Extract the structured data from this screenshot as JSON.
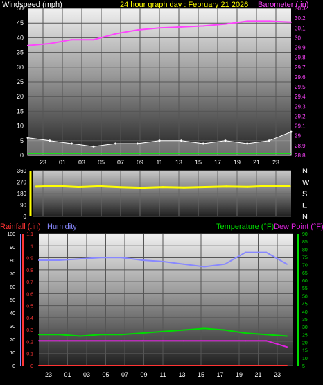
{
  "header": {
    "left_label": "Windspeed (mph)",
    "center_label": "24 hour graph day : February 21 2026",
    "right_label": "Barometer (.in)"
  },
  "colors": {
    "background": "#000000",
    "wind": "#ffffff",
    "wind_gust_avg": "#00ff00",
    "barometer": "#ff44ff",
    "direction": "#ffff00",
    "direction_axis": "#ffff00",
    "rain": "#ff3333",
    "humidity": "#8888ff",
    "temperature": "#00dd00",
    "dew_point": "#dd22dd",
    "header_center": "#ffff00",
    "tick": "#ffffff"
  },
  "x_ticks": [
    "23",
    "01",
    "03",
    "05",
    "07",
    "09",
    "11",
    "13",
    "15",
    "17",
    "19",
    "21",
    "23"
  ],
  "chart_data": [
    {
      "type": "line",
      "panel": "wind_barometer",
      "title": "24 hour graph day : February 21 2026",
      "ylabel_left": "Windspeed (mph)",
      "ylabel_right": "Barometer (.in)",
      "ylim_left": [
        0,
        50
      ],
      "yticks_left": [
        "0",
        "5",
        "10",
        "15",
        "20",
        "25",
        "30",
        "35",
        "40",
        "45",
        "50"
      ],
      "ylim_right": [
        28.8,
        30.3
      ],
      "yticks_right": [
        "28.8",
        "28.9",
        "29",
        "29.1",
        "29.2",
        "29.3",
        "29.4",
        "29.5",
        "29.6",
        "29.7",
        "29.8",
        "29.9",
        "30",
        "30.1",
        "30.2",
        "30.3"
      ],
      "x": [
        "23",
        "01",
        "03",
        "05",
        "07",
        "09",
        "11",
        "13",
        "15",
        "17",
        "19",
        "21",
        "23"
      ],
      "series": [
        {
          "name": "Barometer",
          "axis": "right",
          "color": "#ff44ff",
          "values": [
            29.92,
            29.94,
            29.98,
            29.98,
            30.04,
            30.08,
            30.1,
            30.11,
            30.12,
            30.14,
            30.17,
            30.17,
            30.16
          ]
        },
        {
          "name": "Windspeed",
          "axis": "left",
          "color": "#ffffff",
          "values": [
            6,
            5,
            4,
            3,
            4,
            4,
            5,
            5,
            4,
            5,
            4,
            5,
            8
          ]
        }
      ],
      "grid": true
    },
    {
      "type": "scatter",
      "panel": "wind_direction",
      "ylim": [
        0,
        360
      ],
      "yticks": [
        "0",
        "90",
        "180",
        "270",
        "360"
      ],
      "direction_labels": [
        "N",
        "W",
        "S",
        "E",
        "N"
      ],
      "x": [
        "23",
        "01",
        "03",
        "05",
        "07",
        "09",
        "11",
        "13",
        "15",
        "17",
        "19",
        "21",
        "23"
      ],
      "series": [
        {
          "name": "Wind Direction",
          "color": "#ffff00",
          "values": [
            235,
            240,
            232,
            238,
            230,
            226,
            231,
            228,
            232,
            236,
            233,
            240,
            238
          ]
        }
      ],
      "grid": true
    },
    {
      "type": "line",
      "panel": "rain_humidity_temp",
      "legend_left": [
        "Rainfall (.in)",
        "Humidity"
      ],
      "legend_right": [
        "Temperature (°F)",
        "Dew Point (°F)"
      ],
      "humidity_ylim": [
        0,
        100
      ],
      "humidity_yticks": [
        "0",
        "10",
        "20",
        "30",
        "40",
        "50",
        "60",
        "70",
        "80",
        "90",
        "100"
      ],
      "rain_ylim": [
        0,
        1.1
      ],
      "rain_yticks": [
        "0",
        "0.1",
        "0.2",
        "0.3",
        "0.4",
        "0.5",
        "0.6",
        "0.7",
        "0.8",
        "0.9",
        "1",
        "1.1"
      ],
      "temp_ylim": [
        5,
        90
      ],
      "temp_yticks": [
        "5",
        "10",
        "15",
        "20",
        "25",
        "30",
        "35",
        "40",
        "45",
        "50",
        "55",
        "60",
        "65",
        "70",
        "75",
        "80",
        "85",
        "90"
      ],
      "x": [
        "23",
        "01",
        "03",
        "05",
        "07",
        "09",
        "11",
        "13",
        "15",
        "17",
        "19",
        "21",
        "23"
      ],
      "series": [
        {
          "name": "Humidity",
          "axis": "humidity",
          "color": "#8888ff",
          "values": [
            80,
            80,
            81,
            82,
            82,
            80,
            79,
            77,
            75,
            77,
            86,
            86,
            77
          ]
        },
        {
          "name": "Temperature",
          "axis": "temp",
          "color": "#00dd00",
          "values": [
            25,
            25,
            24,
            25,
            25,
            26,
            27,
            28,
            29,
            28,
            26,
            25,
            24
          ]
        },
        {
          "name": "Dew Point",
          "axis": "temp",
          "color": "#dd22dd",
          "values": [
            21,
            21,
            21,
            21,
            21,
            21,
            21,
            21,
            21,
            21,
            21,
            21,
            17
          ]
        },
        {
          "name": "Rainfall",
          "axis": "rain",
          "color": "#ff3333",
          "values": [
            0,
            0,
            0,
            0,
            0,
            0,
            0,
            0,
            0,
            0,
            0,
            0,
            0
          ]
        }
      ],
      "grid": true
    }
  ]
}
